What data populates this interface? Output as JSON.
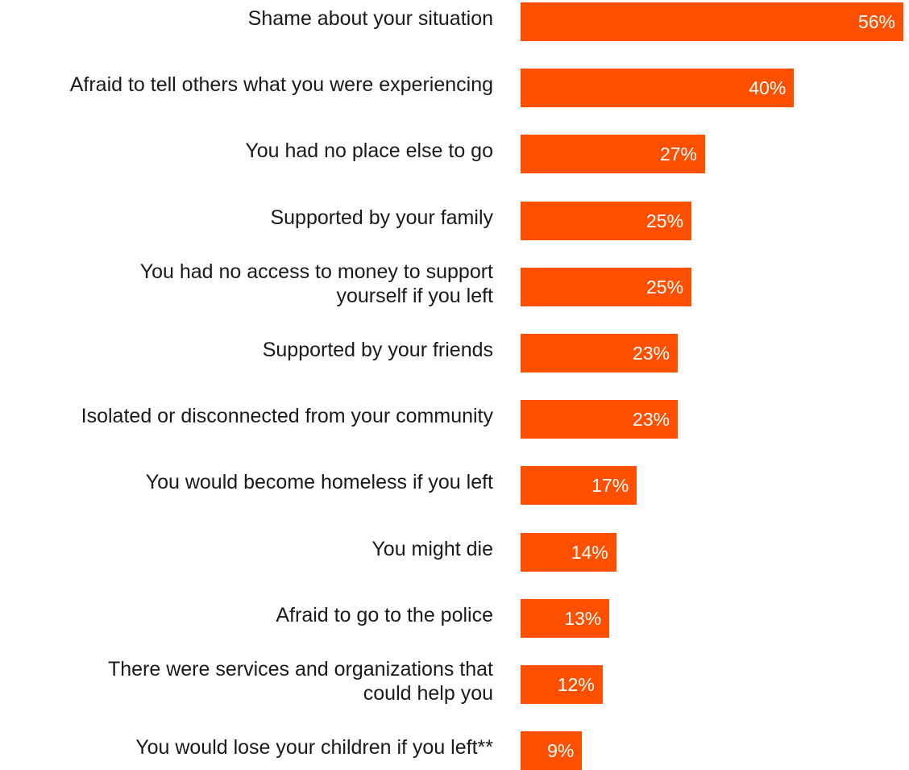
{
  "chart_data": {
    "type": "bar",
    "orientation": "horizontal",
    "categories": [
      "Shame about your situation",
      "Afraid to tell others what you were experiencing",
      "You had no place else to go",
      "Supported by your family",
      "You had no access to money to support yourself if you left",
      "Supported by your friends",
      "Isolated or disconnected from your community",
      "You would become homeless if you left",
      "You might die",
      "Afraid to go to the police",
      "There were services and organizations that could help you",
      "You would lose your children if you left**"
    ],
    "label_lines": [
      [
        "Shame about your situation"
      ],
      [
        "Afraid to tell others what you were experiencing"
      ],
      [
        "You had no place else to go"
      ],
      [
        "Supported by your family"
      ],
      [
        "You had no access to money to support",
        "yourself if you left"
      ],
      [
        "Supported by your friends"
      ],
      [
        "Isolated or disconnected from your community"
      ],
      [
        "You would become homeless if you left"
      ],
      [
        "You might die"
      ],
      [
        "Afraid to go to the police"
      ],
      [
        "There were services and organizations that",
        "could help you"
      ],
      [
        "You would lose your children if you left**"
      ]
    ],
    "values": [
      56,
      40,
      27,
      25,
      25,
      23,
      23,
      17,
      14,
      13,
      12,
      9
    ],
    "value_labels": [
      "56%",
      "40%",
      "27%",
      "25%",
      "25%",
      "23%",
      "23%",
      "17%",
      "14%",
      "13%",
      "12%",
      "9%"
    ],
    "unit": "%",
    "bar_color": "#FF5000",
    "value_label_color": "#FFFFFF",
    "grid": false,
    "legend": "none"
  }
}
